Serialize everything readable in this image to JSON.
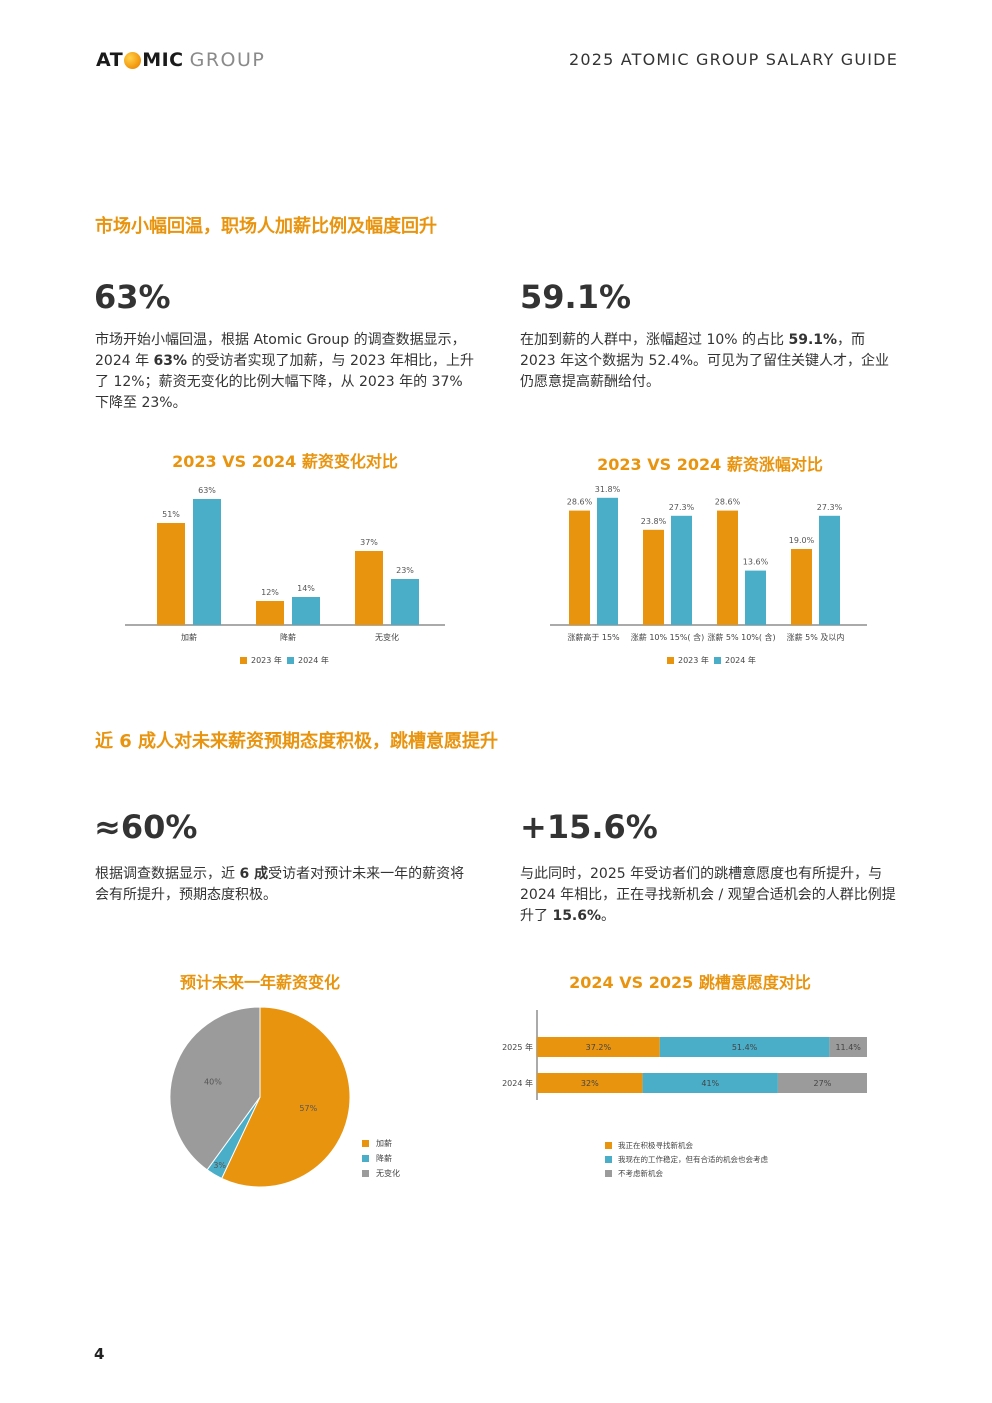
{
  "header": {
    "logo_left": "AT",
    "logo_right": "MIC",
    "logo_group": "GROUP",
    "title": "2025 ATOMIC GROUP SALARY GUIDE"
  },
  "section1": {
    "title": "市场小幅回温，职场人加薪比例及幅度回升",
    "left": {
      "stat": "63%",
      "text_parts": [
        "市场开始小幅回温，根据 Atomic Group 的调查数据显示，2024 年 ",
        "63%",
        " 的受访者实现了加薪，与 2023 年相比，上升了 12%；薪资无变化的比例大幅下降，从 2023 年的 37% 下降至 23%。"
      ]
    },
    "right": {
      "stat": "59.1%",
      "text_parts": [
        "在加到薪的人群中，涨幅超过 10% 的占比 ",
        "59.1%",
        "，而 2023 年这个数据为 52.4%。可见为了留住关键人才，企业仍愿意提高薪酬给付。"
      ]
    }
  },
  "section2": {
    "title": "近 6 成人对未来薪资预期态度积极，跳槽意愿提升",
    "left": {
      "stat": "≈60%",
      "text_parts": [
        "根据调查数据显示，近 ",
        "6 成",
        "受访者对预计未来一年的薪资将会有所提升，预期态度积极。"
      ]
    },
    "right": {
      "stat": "+15.6%",
      "text_parts": [
        "与此同时，2025 年受访者们的跳槽意愿度也有所提升，与 2024 年相比，正在寻找新机会 / 观望合适机会的人群比例提升了 ",
        "15.6%",
        "。"
      ]
    }
  },
  "colors": {
    "orange": "#e8940f",
    "teal": "#4aaec8",
    "grey": "#9b9b9b"
  },
  "chart_data": [
    {
      "type": "bar",
      "title": "2023 VS 2024 薪资变化对比",
      "categories": [
        "加薪",
        "降薪",
        "无变化"
      ],
      "series": [
        {
          "name": "2023 年",
          "values": [
            51,
            12,
            37
          ],
          "labels": [
            "51%",
            "12%",
            "37%"
          ]
        },
        {
          "name": "2024 年",
          "values": [
            63,
            14,
            23
          ],
          "labels": [
            "63%",
            "14%",
            "23%"
          ]
        }
      ],
      "ylim": [
        0,
        70
      ],
      "legend": "bottom"
    },
    {
      "type": "bar",
      "title": "2023 VS 2024 薪资涨幅对比",
      "categories": [
        "涨薪高于 15%",
        "涨薪 10% 15%( 含)",
        "涨薪 5% 10%( 含)",
        "涨薪 5% 及以内"
      ],
      "series": [
        {
          "name": "2023 年",
          "values": [
            28.6,
            23.8,
            28.6,
            19.0
          ],
          "labels": [
            "28.6%",
            "23.8%",
            "28.6%",
            "19.0%"
          ]
        },
        {
          "name": "2024 年",
          "values": [
            31.8,
            27.3,
            13.6,
            27.3
          ],
          "labels": [
            "31.8%",
            "27.3%",
            "13.6%",
            "27.3%"
          ]
        }
      ],
      "ylim": [
        0,
        35
      ],
      "legend": "bottom"
    },
    {
      "type": "pie",
      "title": "预计未来一年薪资变化",
      "categories": [
        "加薪",
        "降薪",
        "无变化"
      ],
      "values": [
        57,
        3,
        40
      ],
      "labels": [
        "57%",
        "3%",
        "40%"
      ],
      "legend": "right"
    },
    {
      "type": "bar",
      "orientation": "horizontal-stacked",
      "title": "2024 VS 2025 跳槽意愿度对比",
      "categories": [
        "2025 年",
        "2024 年"
      ],
      "series": [
        {
          "name": "我正在积极寻找新机会",
          "values": [
            37.2,
            32
          ],
          "labels": [
            "37.2%",
            "32%"
          ]
        },
        {
          "name": "我现在的工作稳定，但有合适的机会也会考虑",
          "values": [
            51.4,
            41
          ],
          "labels": [
            "51.4%",
            "41%"
          ]
        },
        {
          "name": "不考虑新机会",
          "values": [
            11.4,
            27
          ],
          "labels": [
            "11.4%",
            "27%"
          ]
        }
      ],
      "legend": "bottom"
    }
  ],
  "page_number": "4"
}
